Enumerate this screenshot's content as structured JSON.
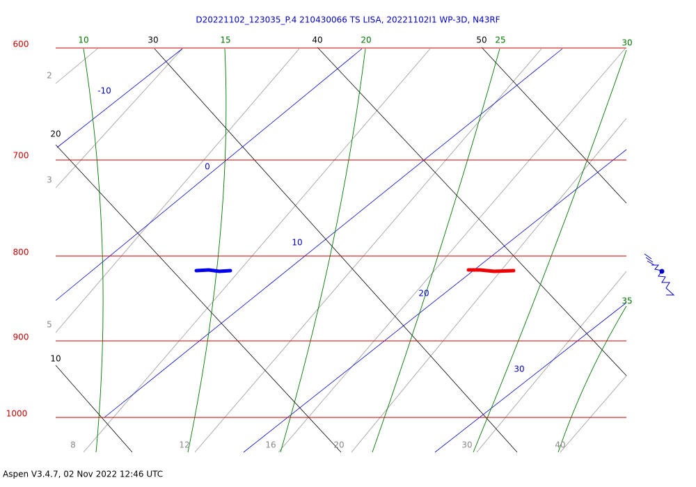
{
  "title": "D20221102_123035_P.4 210430066 TS LISA, 20221102I1 WP-3D, N43RF",
  "footer": "Aspen V3.4.7, 02 Nov 2022  12:46 UTC",
  "pressure_labels": [
    "600",
    "700",
    "800",
    "900",
    "1000"
  ],
  "isotherm_labels": [
    "30",
    "40",
    "50",
    "20",
    "10"
  ],
  "moist_adiabat_labels": [
    "10",
    "15",
    "20",
    "25",
    "30",
    "35"
  ],
  "dry_adiabat_labels": [
    "-10",
    "0",
    "10",
    "20",
    "30"
  ],
  "mixing_ratio_labels": [
    "2",
    "3",
    "5",
    "8",
    "12",
    "16",
    "20",
    "30",
    "40"
  ]
}
